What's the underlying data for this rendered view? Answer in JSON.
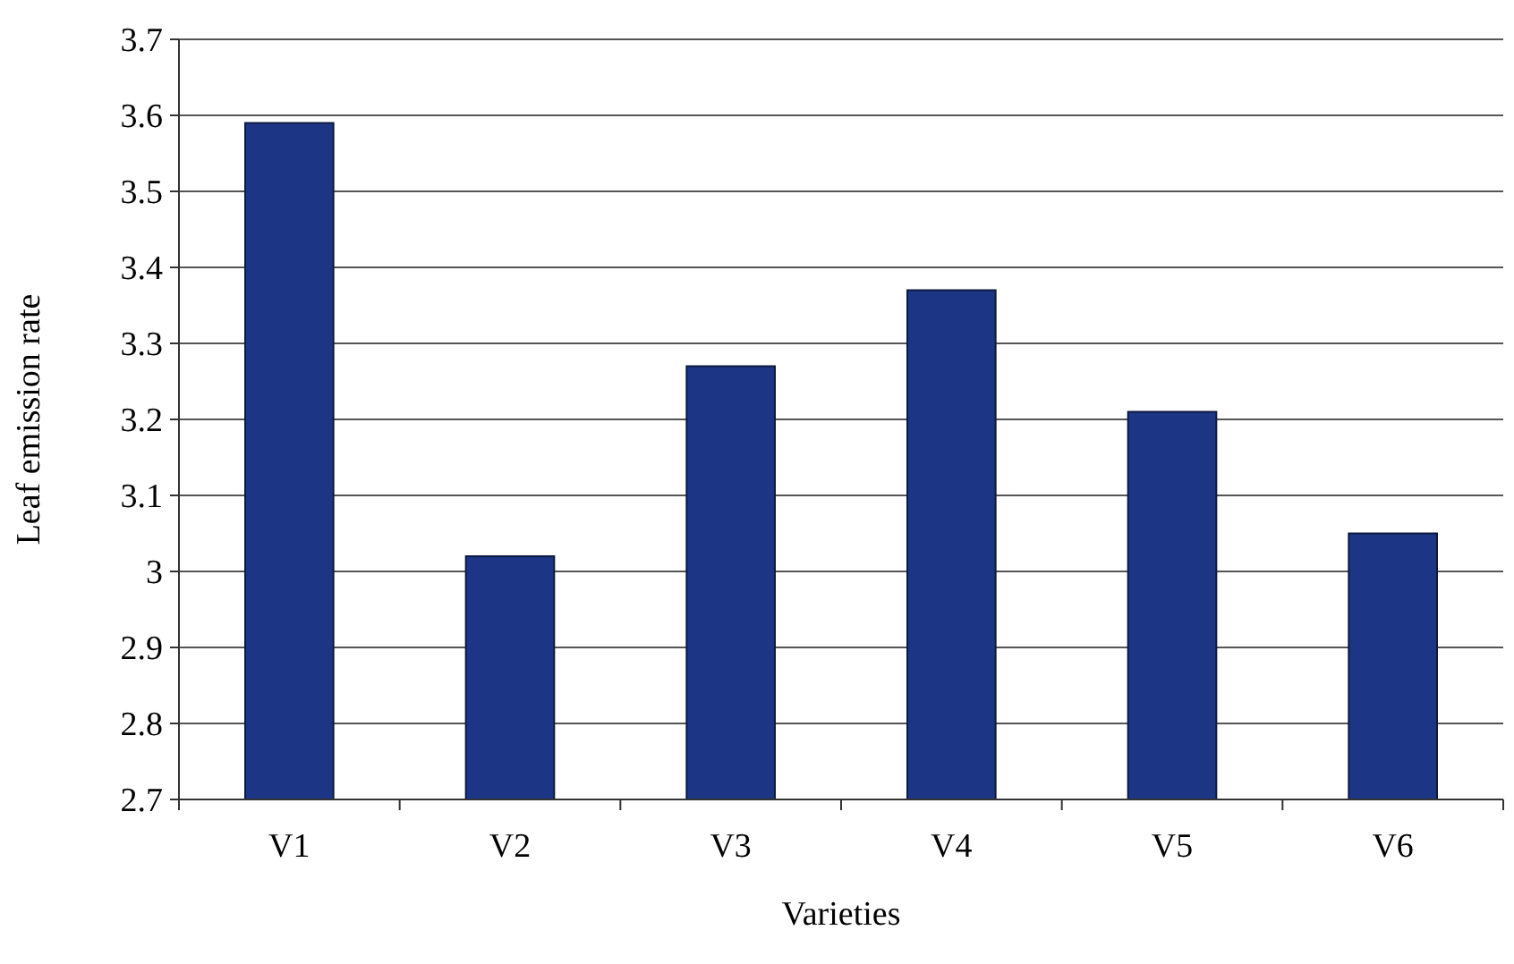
{
  "chart_data": {
    "type": "bar",
    "xlabel": "Varieties",
    "ylabel": "Leaf emission rate",
    "categories": [
      "V1",
      "V2",
      "V3",
      "V4",
      "V5",
      "V6"
    ],
    "values": [
      3.59,
      3.02,
      3.27,
      3.37,
      3.21,
      3.05
    ],
    "color": "#1d3585",
    "ylim": [
      2.7,
      3.7
    ],
    "yticks": [
      2.7,
      2.8,
      2.9,
      3,
      3.1,
      3.2,
      3.3,
      3.4,
      3.5,
      3.6,
      3.7
    ],
    "grid": "y"
  }
}
